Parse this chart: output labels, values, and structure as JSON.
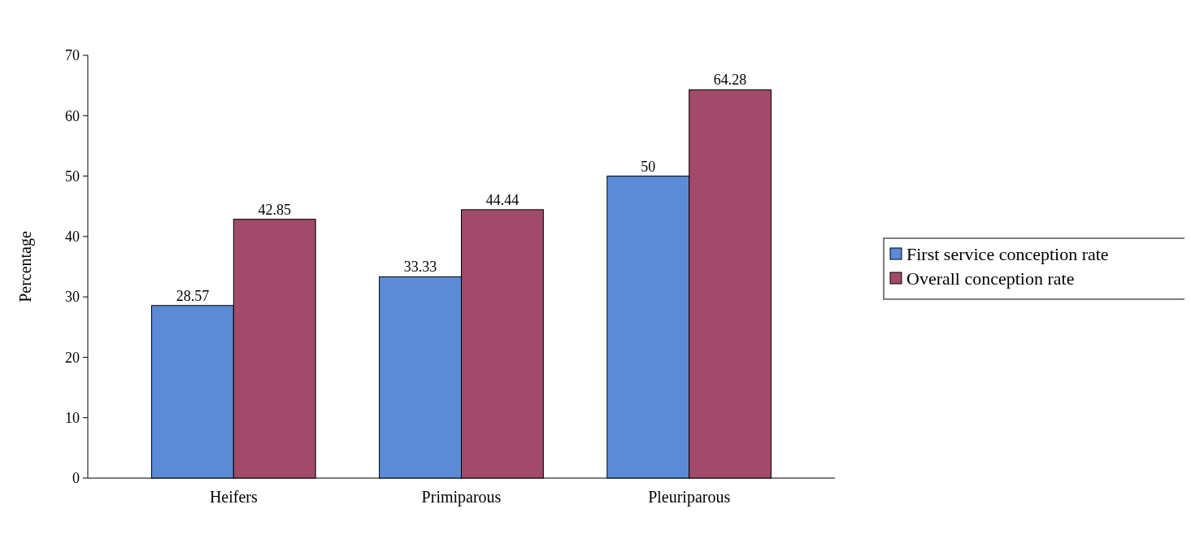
{
  "chart_data": {
    "type": "bar",
    "ylabel": "Percentage",
    "categories": [
      "Heifers",
      "Primiparous",
      "Pleuriparous"
    ],
    "series": [
      {
        "name": "First service conception rate",
        "color": "#5b8bd6",
        "values": [
          28.57,
          33.33,
          50
        ]
      },
      {
        "name": "Overall conception rate",
        "color": "#a14a6a",
        "values": [
          42.85,
          44.44,
          64.28
        ]
      }
    ],
    "ylim": [
      0,
      70
    ],
    "yticks": [
      0,
      10,
      20,
      30,
      40,
      50,
      60,
      70
    ],
    "data_labels": true,
    "legend": "right",
    "grid": false
  }
}
